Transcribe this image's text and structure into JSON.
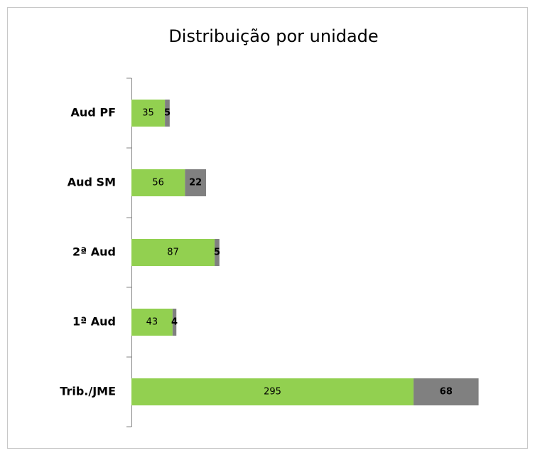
{
  "chart_data": {
    "type": "stacked-barh",
    "title": "Distribuição por unidade",
    "categories": [
      "Aud PF",
      "Aud SM",
      "2ª Aud",
      "1ª Aud",
      "Trib./JME"
    ],
    "series": [
      {
        "color": "#92d050",
        "values": [
          35,
          56,
          87,
          43,
          295
        ]
      },
      {
        "color": "#808080",
        "values": [
          5,
          22,
          5,
          4,
          68
        ]
      }
    ]
  }
}
